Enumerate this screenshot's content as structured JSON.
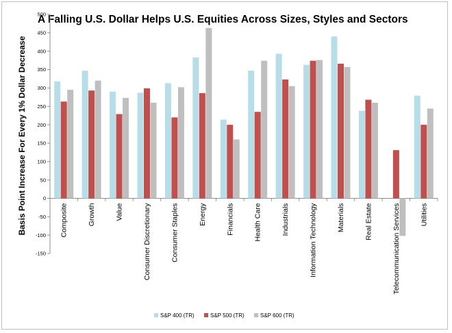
{
  "chart_data": {
    "type": "bar",
    "title": "A Falling U.S. Dollar Helps U.S. Equities Across Sizes, Styles and Sectors",
    "xlabel": "",
    "ylabel": "Basis Point Increase For Every 1% Dollar Decrease",
    "ylim": [
      -150,
      500
    ],
    "ytick_step": 50,
    "grid": false,
    "legend_position": "bottom-center",
    "categories": [
      "Composite",
      "Growth",
      "Value",
      "Consumer Discretionary",
      "Consumer Staples",
      "Energy",
      "Financials",
      "Health Care",
      "Industrials",
      "Information Technology",
      "Materials",
      "Real Estate",
      "Telecommunication Services",
      "Utilities"
    ],
    "series": [
      {
        "name": "S&P 400 (TR)",
        "color": "#b7dde8",
        "values": [
          318,
          347,
          290,
          287,
          313,
          383,
          214,
          347,
          393,
          363,
          440,
          238,
          null,
          279
        ]
      },
      {
        "name": "S&P 500 (TR)",
        "color": "#c0504d",
        "values": [
          263,
          293,
          229,
          299,
          220,
          286,
          200,
          235,
          323,
          374,
          366,
          268,
          131,
          200
        ]
      },
      {
        "name": "S&P 600 (TR)",
        "color": "#bfbfbf",
        "values": [
          295,
          320,
          273,
          260,
          302,
          463,
          160,
          374,
          305,
          376,
          357,
          260,
          -102,
          244
        ]
      }
    ]
  }
}
